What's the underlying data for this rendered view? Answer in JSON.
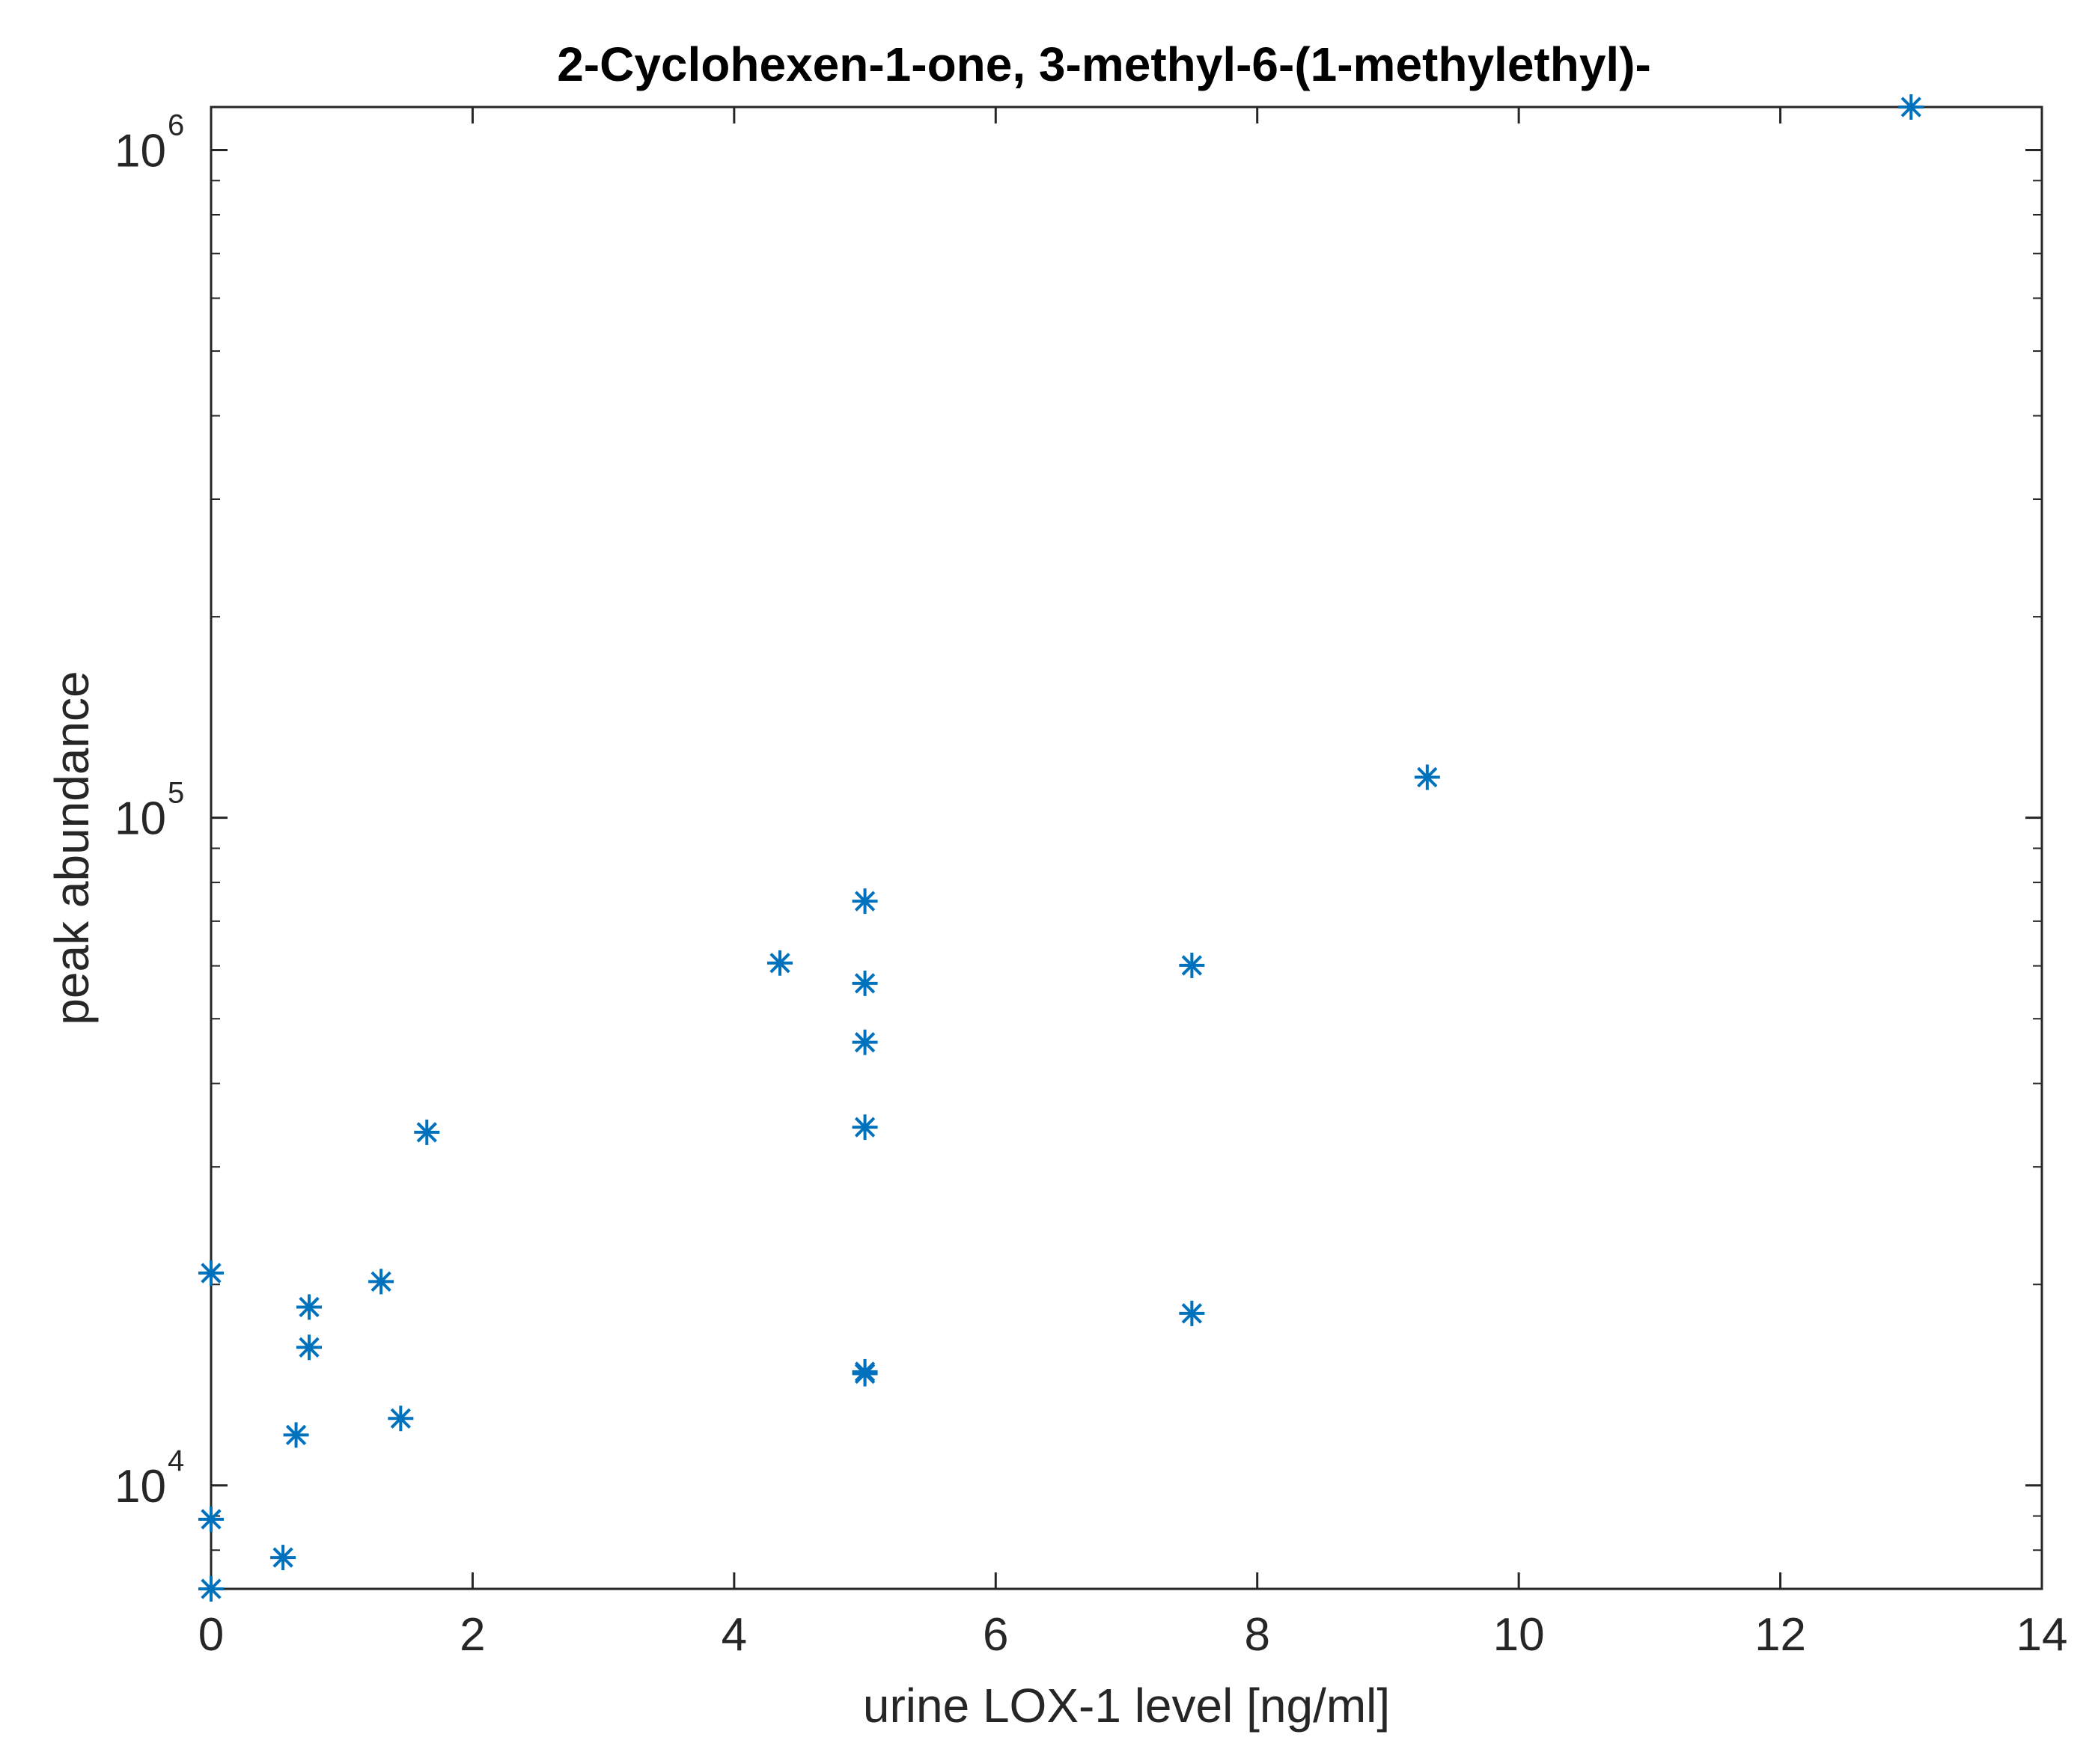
{
  "chart_data": {
    "type": "scatter",
    "title": "2-Cyclohexen-1-one, 3-methyl-6-(1-methylethyl)-",
    "xlabel": "urine LOX-1 level [ng/ml]",
    "ylabel": "peak abundance",
    "xlim": [
      0,
      14
    ],
    "ylim": [
      7000,
      1160000
    ],
    "yscale": "log",
    "grid": false,
    "legend": "none",
    "marker": "asterisk",
    "marker_color": "#0072BD",
    "axis_color": "#262626",
    "x_ticks": [
      "0",
      "2",
      "4",
      "6",
      "8",
      "10",
      "12",
      "14"
    ],
    "y_ticks": [
      {
        "value": 10000,
        "base": "10",
        "exp": "4"
      },
      {
        "value": 100000,
        "base": "10",
        "exp": "5"
      },
      {
        "value": 1000000,
        "base": "10",
        "exp": "6"
      }
    ],
    "series": [
      {
        "points": [
          {
            "x": 0,
            "y": 7000
          },
          {
            "x": 0,
            "y": 8900
          },
          {
            "x": 0,
            "y": 20800
          },
          {
            "x": 0.55,
            "y": 7800
          },
          {
            "x": 0.65,
            "y": 11900
          },
          {
            "x": 0.75,
            "y": 16100
          },
          {
            "x": 0.75,
            "y": 18500
          },
          {
            "x": 1.3,
            "y": 20200
          },
          {
            "x": 1.45,
            "y": 12600
          },
          {
            "x": 1.65,
            "y": 33800
          },
          {
            "x": 4.35,
            "y": 60600
          },
          {
            "x": 5,
            "y": 75000
          },
          {
            "x": 5,
            "y": 56500
          },
          {
            "x": 5,
            "y": 46100
          },
          {
            "x": 5,
            "y": 34400
          },
          {
            "x": 5,
            "y": 14800
          },
          {
            "x": 5,
            "y": 14700
          },
          {
            "x": 7.5,
            "y": 60100
          },
          {
            "x": 7.5,
            "y": 18100
          },
          {
            "x": 9.3,
            "y": 115000
          },
          {
            "x": 13,
            "y": 1160000
          }
        ]
      }
    ]
  }
}
